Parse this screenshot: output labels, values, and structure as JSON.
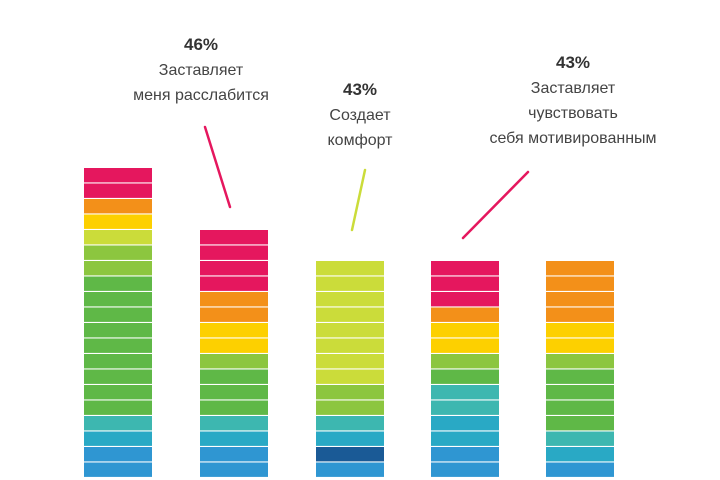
{
  "chart_data": {
    "type": "bar",
    "title": "",
    "xlabel": "",
    "ylabel": "",
    "grid": false,
    "legend": "none",
    "unit": "segments",
    "bars": [
      {
        "value": 20,
        "segments": [
          "#e5175e",
          "#e5175e",
          "#f39019",
          "#fdd000",
          "#cbdc3a",
          "#8cc63f",
          "#8cc63f",
          "#5fb847",
          "#5fb847",
          "#5fb847",
          "#5fb847",
          "#5fb847",
          "#5fb847",
          "#5fb847",
          "#5fb847",
          "#5fb847",
          "#3db7b0",
          "#29a9c5",
          "#2f96d2",
          "#2f96d2"
        ],
        "annotation": null
      },
      {
        "value": 16,
        "segments": [
          "#e5175e",
          "#e5175e",
          "#e5175e",
          "#e5175e",
          "#f39019",
          "#f39019",
          "#fdd000",
          "#fdd000",
          "#8cc63f",
          "#5fb847",
          "#5fb847",
          "#5fb847",
          "#3db7b0",
          "#29a9c5",
          "#2f96d2",
          "#2f96d2"
        ],
        "annotation": {
          "percent": "46%",
          "lines": [
            "Заставляет",
            "меня расслабится"
          ],
          "line_color": "#e5175e"
        }
      },
      {
        "value": 14,
        "segments": [
          "#cbdc3a",
          "#cbdc3a",
          "#cbdc3a",
          "#cbdc3a",
          "#cbdc3a",
          "#cbdc3a",
          "#cbdc3a",
          "#cbdc3a",
          "#8cc63f",
          "#8cc63f",
          "#3db7b0",
          "#29a9c5",
          "#1a5a96",
          "#2f96d2"
        ],
        "annotation": {
          "percent": "43%",
          "lines": [
            "Создает",
            "комфорт"
          ],
          "line_color": "#cbdc3a"
        }
      },
      {
        "value": 14,
        "segments": [
          "#e5175e",
          "#e5175e",
          "#e5175e",
          "#f39019",
          "#fdd000",
          "#fdd000",
          "#8cc63f",
          "#5fb847",
          "#3db7b0",
          "#3db7b0",
          "#29a9c5",
          "#29a9c5",
          "#2f96d2",
          "#2f96d2"
        ],
        "annotation": {
          "percent": "43%",
          "lines": [
            "Заставляет",
            "чувствовать",
            "себя мотивированным"
          ],
          "line_color": "#e5175e"
        }
      },
      {
        "value": 14,
        "segments": [
          "#f39019",
          "#f39019",
          "#f39019",
          "#f39019",
          "#fdd000",
          "#fdd000",
          "#8cc63f",
          "#5fb847",
          "#5fb847",
          "#5fb847",
          "#5fb847",
          "#3db7b0",
          "#29a9c5",
          "#2f96d2"
        ],
        "annotation": null
      }
    ]
  }
}
